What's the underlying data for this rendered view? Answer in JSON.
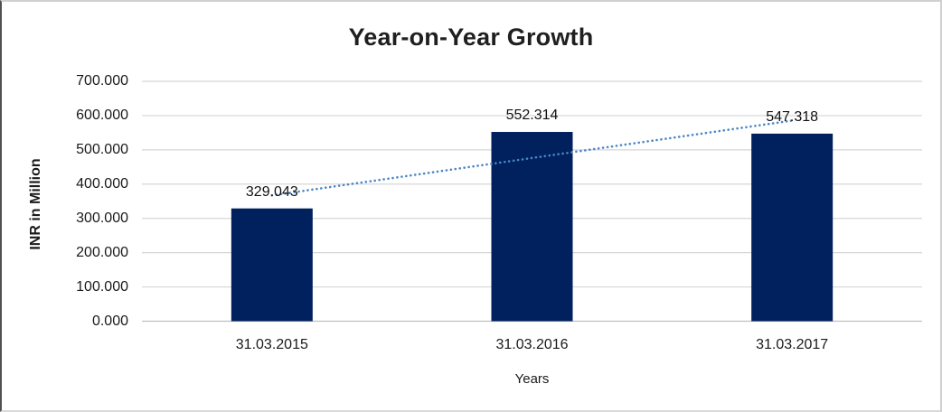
{
  "chart_data": {
    "type": "bar",
    "title": "Year-on-Year Growth",
    "categories": [
      "31.03.2015",
      "31.03.2016",
      "31.03.2017"
    ],
    "values": [
      329.043,
      552.314,
      547.318
    ],
    "data_labels": [
      "329.043",
      "552.314",
      "547.318"
    ],
    "xlabel": "Years",
    "ylabel": "INR in Million",
    "ylim": [
      0,
      700
    ],
    "ytick_labels": [
      "0.000",
      "100.000",
      "200.000",
      "300.000",
      "400.000",
      "500.000",
      "600.000",
      "700.000"
    ],
    "grid": true,
    "legend": "none",
    "bar_color": "#00215e",
    "gridline_color": "#d6d6d6",
    "axis_line_color": "#bfbfbf",
    "trendline": {
      "type": "linear",
      "style": "dotted",
      "color": "#4a86c6",
      "fitted_values": [
        367.088,
        476.225,
        585.362
      ]
    }
  }
}
